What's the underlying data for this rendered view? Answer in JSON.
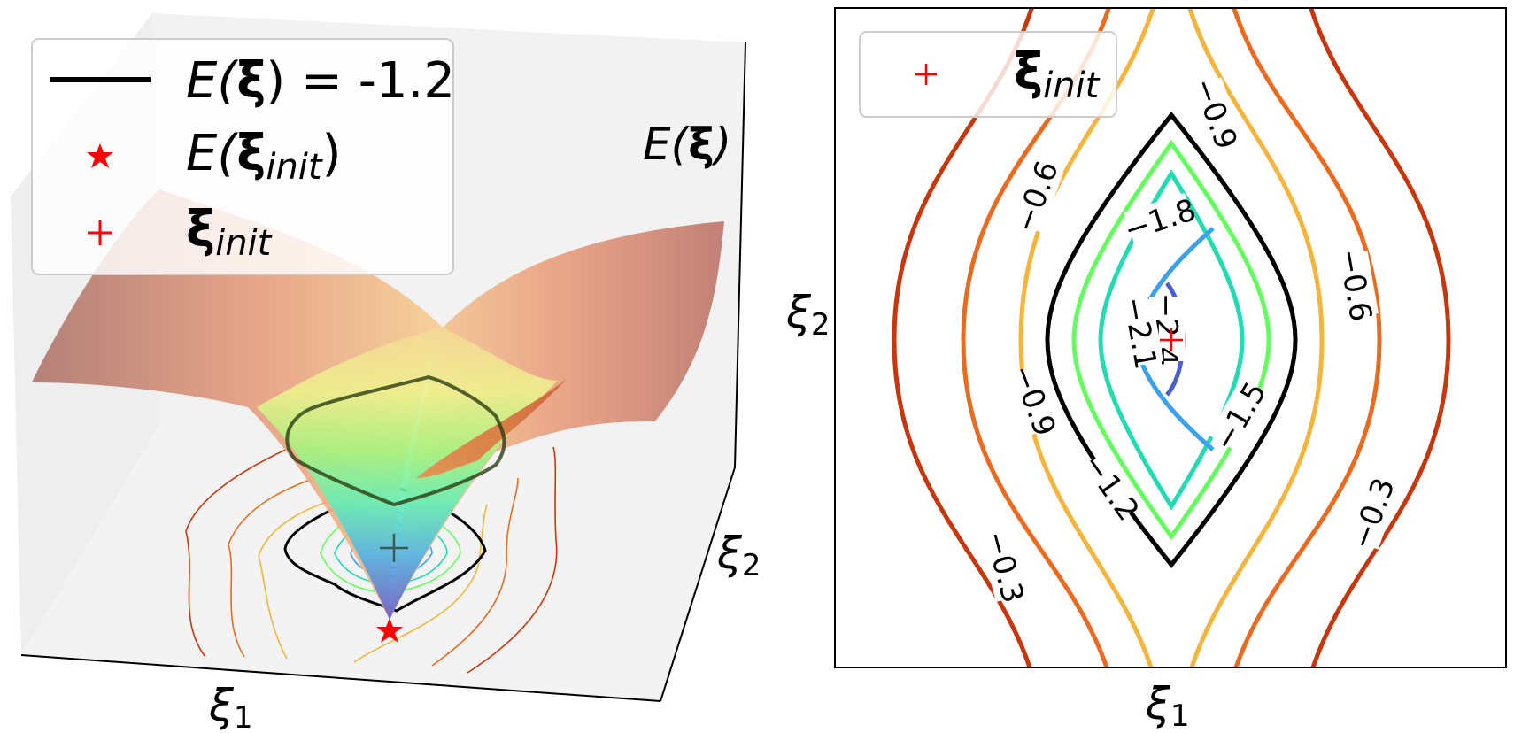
{
  "chart_data": [
    {
      "type": "surface3d",
      "title": "",
      "z_axis_label": "E(ξ)",
      "x_axis_label": "ξ1",
      "y_axis_label": "ξ2",
      "legend_position": "top-left",
      "legend": [
        {
          "label": "E(ξ) = -1.2",
          "marker": "black-line"
        },
        {
          "label": "E(ξinit)",
          "marker": "red-star"
        },
        {
          "label": "ξinit",
          "marker": "red-plus"
        }
      ],
      "highlighted_level": -1.2,
      "floor_contour_levels": [
        -2.4,
        -2.1,
        -1.8,
        -1.5,
        -1.2,
        -0.9,
        -0.6,
        -0.3
      ],
      "init_point": {
        "x": 0,
        "y": 0
      },
      "colormap": "turbo"
    },
    {
      "type": "contour",
      "title": "",
      "xlabel": "ξ1",
      "ylabel": "ξ2",
      "legend_position": "top-left",
      "legend": [
        {
          "label": "ξinit",
          "marker": "red-plus"
        }
      ],
      "grid": false,
      "levels": [
        -2.4,
        -2.1,
        -1.8,
        -1.5,
        -1.2,
        -0.9,
        -0.6,
        -0.3
      ],
      "level_labels": [
        "−2.4",
        "−2.1",
        "−1.8",
        "−1.5",
        "−1.2",
        "−0.9",
        "−0.6",
        "−0.3"
      ],
      "level_colors": {
        "-2.4": "#4a5ed0",
        "-2.1": "#3aa0f0",
        "-1.8": "#20dcb0",
        "-1.5": "#62ff5e",
        "-1.2": "#000000",
        "-0.9": "#f5b43c",
        "-0.6": "#ec6a1e",
        "-0.3": "#c8370c"
      },
      "init_point": {
        "x": 0,
        "y": 0
      }
    }
  ],
  "legend3d": {
    "row1_prefix": "E(",
    "row1_bold": "ξ",
    "row1_suffix": ") = -1.2",
    "row2_prefix": "E(",
    "row2_bold": "ξ",
    "row2_sub": "init",
    "row2_suffix": ")",
    "row3_bold": "ξ",
    "row3_sub": "init"
  },
  "axis3d": {
    "z_prefix": "E(",
    "z_bold": "ξ",
    "z_suffix": ")",
    "x_sym": "ξ",
    "x_sub": "1",
    "y_sym": "ξ",
    "y_sub": "2"
  },
  "contour2d_text": {
    "legend_bold": "ξ",
    "legend_sub": "init",
    "x_sym": "ξ",
    "x_sub": "1",
    "y_sym": "ξ",
    "y_sub": "2"
  },
  "colors": {
    "init_marker": "#ff0000",
    "surface_edge": "#a5655a",
    "floor_shade": "#f1f1f1"
  }
}
